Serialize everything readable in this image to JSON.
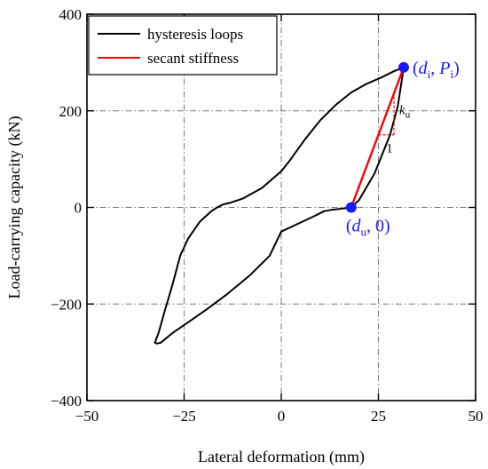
{
  "chart_data": {
    "type": "line",
    "xlabel": "Lateral deformation (mm)",
    "ylabel": "Load-carrying capacity (kN)",
    "xlim": [
      -50,
      50
    ],
    "ylim": [
      -400,
      400
    ],
    "x_ticks": [
      -50,
      -25,
      0,
      25,
      50
    ],
    "y_ticks": [
      -400,
      -200,
      0,
      200,
      400
    ],
    "x_tick_labels": [
      "−50",
      "−25",
      "0",
      "25",
      "50"
    ],
    "y_tick_labels": [
      "−400",
      "−200",
      "0",
      "200",
      "400"
    ],
    "grid": "dash-dot at inner ticks",
    "legend_position": "top-left",
    "series": [
      {
        "name": "hysteresis loops",
        "color": "#000000",
        "points": [
          [
            31.5,
            290
          ],
          [
            29,
            282
          ],
          [
            26,
            270
          ],
          [
            22,
            256
          ],
          [
            18,
            238
          ],
          [
            14,
            212
          ],
          [
            10,
            180
          ],
          [
            6,
            140
          ],
          [
            2,
            95
          ],
          [
            0,
            75
          ],
          [
            -5,
            40
          ],
          [
            -10,
            18
          ],
          [
            -13,
            10
          ],
          [
            -15,
            6
          ],
          [
            -16.5,
            0
          ],
          [
            -18,
            -8
          ],
          [
            -21,
            -30
          ],
          [
            -24,
            -65
          ],
          [
            -26,
            -100
          ],
          [
            -28,
            -160
          ],
          [
            -30,
            -215
          ],
          [
            -31.5,
            -258
          ],
          [
            -32.5,
            -280
          ],
          [
            -32,
            -282
          ],
          [
            -31,
            -280
          ],
          [
            -28,
            -260
          ],
          [
            -24,
            -238
          ],
          [
            -19,
            -210
          ],
          [
            -14,
            -180
          ],
          [
            -8,
            -140
          ],
          [
            -3,
            -100
          ],
          [
            0,
            -50
          ],
          [
            4,
            -35
          ],
          [
            8,
            -20
          ],
          [
            11,
            -8
          ],
          [
            13,
            -5
          ],
          [
            16,
            -2
          ],
          [
            18,
            0
          ],
          [
            20,
            15
          ],
          [
            24,
            70
          ],
          [
            28,
            150
          ],
          [
            30,
            210
          ],
          [
            31.5,
            290
          ]
        ]
      },
      {
        "name": "secant stiffness",
        "color": "#ff0000",
        "points": [
          [
            18,
            0
          ],
          [
            31.5,
            290
          ]
        ]
      }
    ],
    "markers": [
      {
        "x": 31.5,
        "y": 290,
        "color": "#1a1aff"
      },
      {
        "x": 18,
        "y": 0,
        "color": "#1a1aff"
      }
    ],
    "annotations": {
      "peak_label": {
        "open": "(",
        "d": "d",
        "d_sub": "i",
        "sep": ", ",
        "p": "P",
        "p_sub": "i",
        "close": ")"
      },
      "unload_label": {
        "open": "(",
        "d": "d",
        "d_sub": "u",
        "sep": ", ",
        "zero": "0",
        "close": ")"
      },
      "slope_k": "k",
      "slope_k_sub": "u",
      "slope_run": "1"
    }
  }
}
